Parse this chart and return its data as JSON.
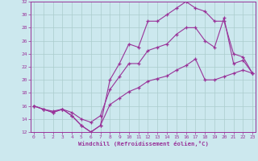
{
  "bg_color": "#cce8ee",
  "grid_color": "#aacccc",
  "line_color": "#993399",
  "xlim_min": -0.3,
  "xlim_max": 23.3,
  "ylim_min": 12,
  "ylim_max": 32,
  "xticks": [
    0,
    1,
    2,
    3,
    4,
    5,
    6,
    7,
    8,
    9,
    10,
    11,
    12,
    13,
    14,
    15,
    16,
    17,
    18,
    19,
    20,
    21,
    22,
    23
  ],
  "yticks": [
    12,
    14,
    16,
    18,
    20,
    22,
    24,
    26,
    28,
    30,
    32
  ],
  "xlabel": "Windchill (Refroidissement éolien,°C)",
  "line1_x": [
    0,
    1,
    2,
    3,
    4,
    5,
    6,
    7,
    8,
    9,
    10,
    11,
    12,
    13,
    14,
    15,
    16,
    17,
    18,
    19,
    20,
    21,
    22,
    23
  ],
  "line1_y": [
    16.0,
    15.5,
    15.0,
    15.5,
    14.5,
    13.0,
    12.0,
    13.0,
    20.0,
    22.5,
    25.5,
    25.0,
    29.0,
    29.0,
    30.0,
    31.0,
    32.0,
    31.0,
    30.5,
    29.0,
    29.0,
    24.0,
    23.5,
    21.0
  ],
  "line2_x": [
    0,
    1,
    2,
    3,
    4,
    5,
    6,
    7,
    8,
    9,
    10,
    11,
    12,
    13,
    14,
    15,
    16,
    17,
    18,
    19,
    20,
    21,
    22,
    23
  ],
  "line2_y": [
    16.0,
    15.5,
    15.0,
    15.5,
    14.5,
    13.0,
    12.0,
    13.0,
    16.2,
    17.2,
    18.2,
    18.8,
    19.8,
    20.2,
    20.6,
    21.5,
    22.2,
    23.2,
    20.0,
    20.0,
    20.5,
    21.0,
    21.5,
    21.0
  ],
  "line3_x": [
    0,
    1,
    2,
    3,
    4,
    5,
    6,
    7,
    8,
    9,
    10,
    11,
    12,
    13,
    14,
    15,
    16,
    17,
    18,
    19,
    20,
    21,
    22,
    23
  ],
  "line3_y": [
    16.0,
    15.5,
    15.2,
    15.5,
    15.0,
    14.0,
    13.5,
    14.5,
    18.5,
    20.5,
    22.5,
    22.5,
    24.5,
    25.0,
    25.5,
    27.0,
    28.0,
    28.0,
    26.0,
    25.0,
    29.5,
    22.5,
    23.0,
    21.0
  ]
}
